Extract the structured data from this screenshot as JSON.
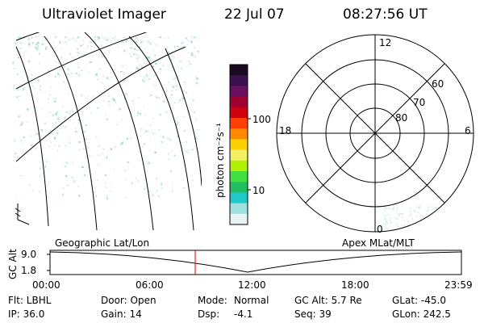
{
  "header": {
    "instrument": "Ultraviolet Imager",
    "date": "22 Jul 07",
    "time": "08:27:56 UT"
  },
  "colorbar": {
    "unit_label": "photon cm⁻²s⁻¹",
    "ticks": [
      "100",
      "10"
    ],
    "colors": [
      "#1a0a20",
      "#3a1050",
      "#6a1060",
      "#a00030",
      "#d00010",
      "#ff4000",
      "#ff8a00",
      "#ffd000",
      "#f0f060",
      "#b0f000",
      "#40e040",
      "#20c060",
      "#20c8c8",
      "#a0e0e0",
      "#e8f4f4"
    ]
  },
  "geo_panel": {
    "label": "Geographic Lat/Lon"
  },
  "polar_panel": {
    "label": "Apex MLat/MLT",
    "mlt_labels": {
      "top": "12",
      "left": "18",
      "right": "6",
      "bottom": "0"
    },
    "lat_labels": [
      "60",
      "70",
      "80"
    ]
  },
  "altitude_plot": {
    "ylabel": "GC Alt",
    "yticks": [
      "9.0",
      "1.8"
    ],
    "xticks": [
      "00:00",
      "06:00",
      "12:00",
      "18:00",
      "23:59"
    ],
    "cursor_hour": 8.47
  },
  "info": {
    "filter": "Flt: LBHL",
    "door": "Door: Open",
    "mode_label": "Mode:",
    "mode_value": "Normal",
    "gc_alt": "GC Alt: 5.7 Re",
    "glat": "GLat: -45.0",
    "ip": "IP: 36.0",
    "gain": "Gain: 14",
    "dsp_label": "Dsp:",
    "dsp_value": "-4.1",
    "seq": "Seq: 39",
    "glon": "GLon: 242.5"
  }
}
